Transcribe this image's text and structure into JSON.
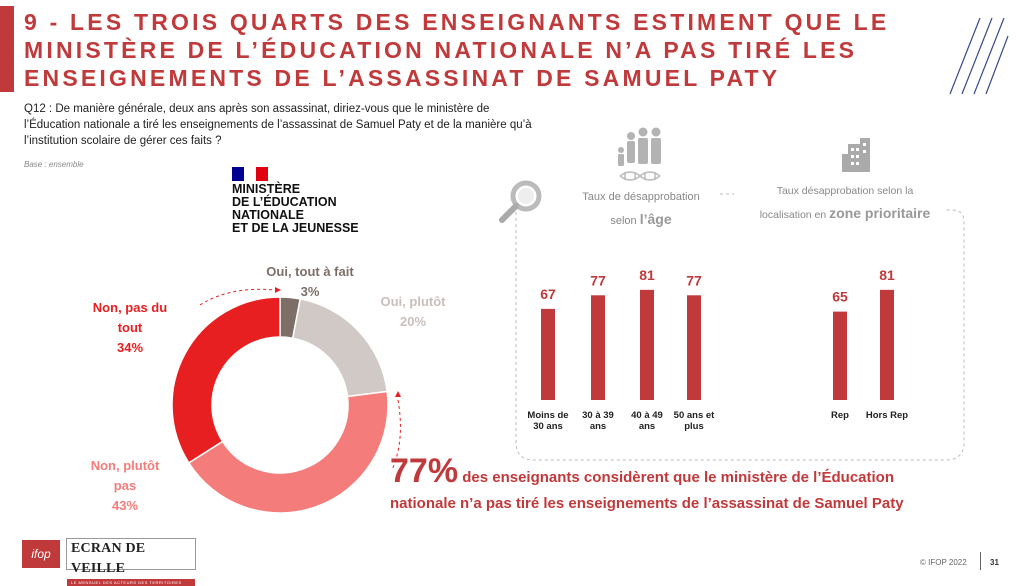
{
  "title": "9 - Les trois quarts des enseignants estiment que le ministère de l’Éducation nationale n’a pas tiré les enseignements de l’assassinat de Samuel Paty",
  "question": "Q12 : De manière générale, deux ans après son assassinat, diriez-vous que le ministère de l’Éducation nationale a tiré les enseignements de l’assassinat de Samuel Paty et de la manière qu’à l’institution scolaire de gérer ces faits ?",
  "base": "Base : ensemble",
  "ministry": {
    "line1": "MINISTÈRE",
    "line2": "DE L’ÉDUCATION",
    "line3": "NATIONALE",
    "line4": "ET DE LA JEUNESSE",
    "flag_colors": [
      "#000091",
      "#ffffff",
      "#e1000f"
    ]
  },
  "colors": {
    "accent": "#c0393b",
    "oui_tout_a_fait": "#7d6e68",
    "oui_plutot": "#d0c9c6",
    "non_plutot_pas": "#f47c7b",
    "non_pas_du_tout": "#e81f21",
    "bar": "#c0393b"
  },
  "panels": {
    "age_title_1": "Taux de désapprobation",
    "age_title_2a": "selon ",
    "age_title_2b": "l’âge",
    "zone_title_1": "Taux désapprobation selon la",
    "zone_title_2a": "localisation en ",
    "zone_title_2b": "zone prioritaire",
    "age_icon": "family-icon",
    "dna_icon": "dna-icon",
    "magnifier_icon": "magnifier-icon",
    "building_icon": "building-icon"
  },
  "chart_data": [
    {
      "type": "pie",
      "subtype": "donut",
      "labels": [
        "Oui, tout à fait",
        "Oui, plutôt",
        "Non, plutôt pas",
        "Non, pas du tout"
      ],
      "values": [
        3,
        20,
        43,
        34
      ],
      "value_labels": [
        "3%",
        "20%",
        "43%",
        "34%"
      ],
      "label_lines": [
        [
          "Oui, tout à fait"
        ],
        [
          "Oui, plutôt"
        ],
        [
          "Non, plutôt",
          "pas"
        ],
        [
          "Non, pas du",
          "tout"
        ]
      ]
    },
    {
      "type": "bar",
      "categories": [
        [
          "Moins de",
          "30 ans"
        ],
        [
          "30 à 39",
          "ans"
        ],
        [
          "40 à 49",
          "ans"
        ],
        [
          "50 ans et",
          "plus"
        ]
      ],
      "values": [
        67,
        77,
        81,
        77
      ]
    },
    {
      "type": "bar",
      "categories": [
        [
          "Rep"
        ],
        [
          "Hors Rep"
        ]
      ],
      "values": [
        65,
        81
      ]
    }
  ],
  "callout": {
    "percent": "77%",
    "text_1": " des enseignants considèrent que le ministère de l’Éducation",
    "text_2": "nationale n’a pas tiré les enseignements de l’assassinat de Samuel Paty"
  },
  "footer": {
    "ifop_logo": "ifop",
    "ecran_logo": "ECRAN DE VEILLE",
    "ecran_sub": "LE MENSUEL DES ACTEURS DES TERRITOIRES",
    "copyright": "© IFOP 2022",
    "page": "31"
  }
}
